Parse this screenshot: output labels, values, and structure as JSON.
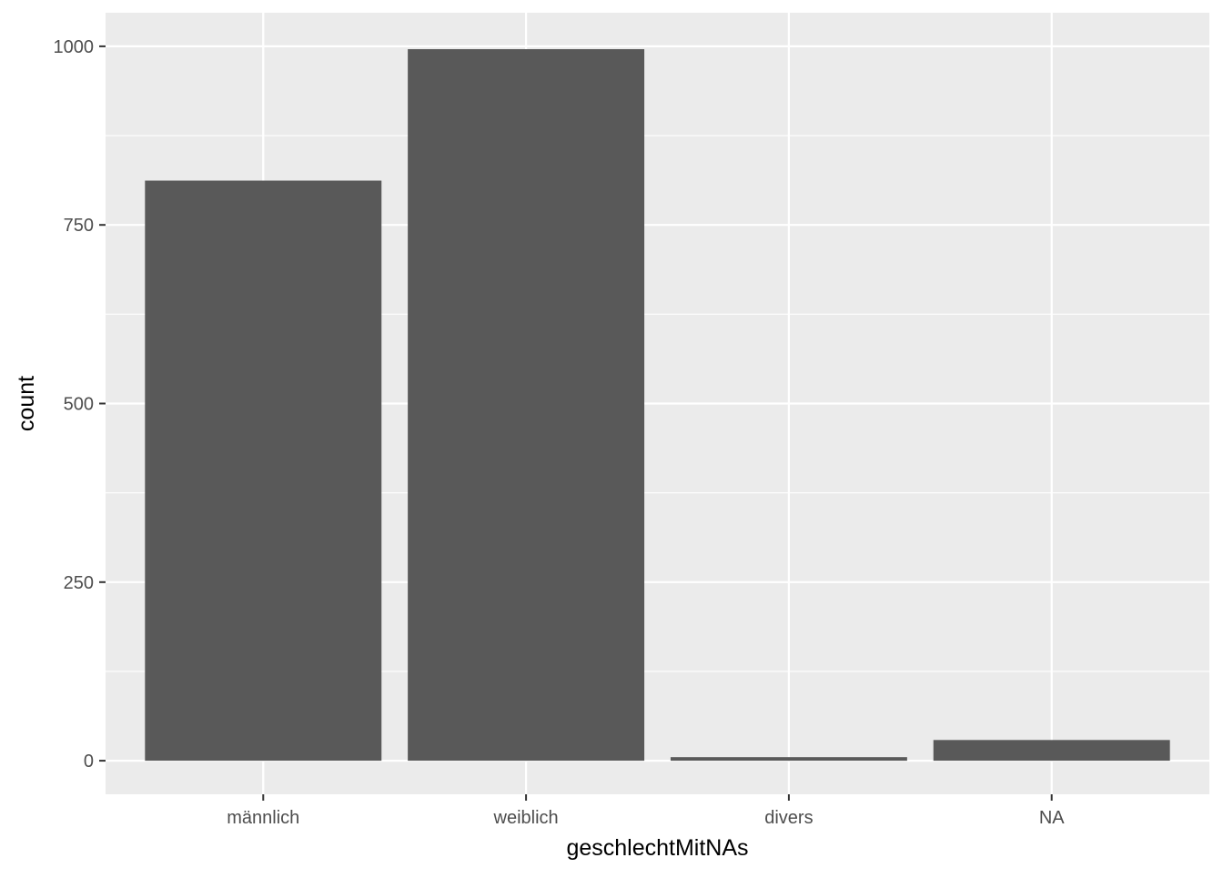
{
  "chart_data": {
    "type": "bar",
    "categories": [
      "männlich",
      "weiblich",
      "divers",
      "NA"
    ],
    "values": [
      812,
      996,
      5,
      29
    ],
    "xlabel": "geschlechtMitNAs",
    "ylabel": "count",
    "ylim": [
      -47,
      1047
    ],
    "yticks": [
      0,
      250,
      500,
      750,
      1000
    ],
    "yticks_minor": [
      125,
      375,
      625,
      875
    ],
    "grid": true,
    "legend": "none",
    "colors": {
      "panel_background": "#ebebeb",
      "grid": "#ffffff",
      "bar_fill": "#595959",
      "tick_text": "#4d4d4d",
      "tick_mark": "#333333",
      "title_text": "#000000"
    }
  }
}
